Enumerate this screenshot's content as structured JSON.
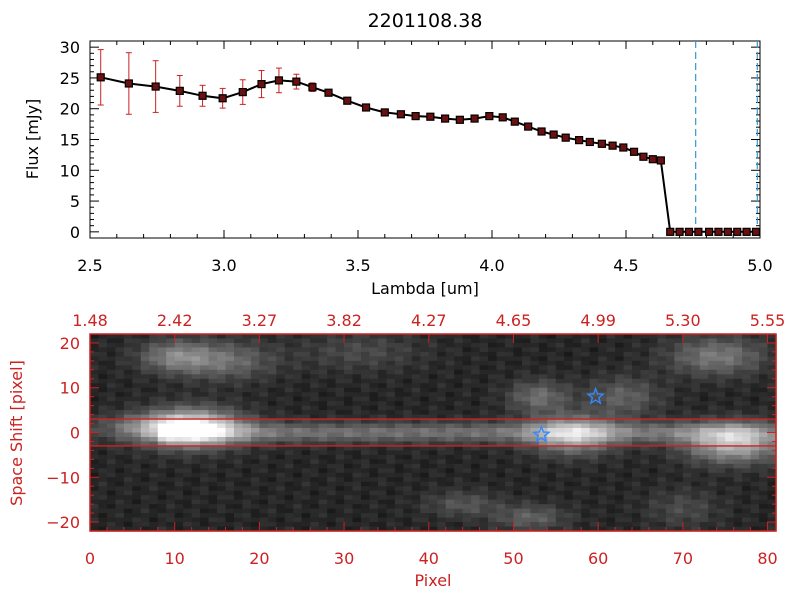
{
  "colors": {
    "black": "#000000",
    "red": "#cc2222",
    "cyan": "#3399cc",
    "star": "#3388ff"
  },
  "chart_data": [
    {
      "type": "line",
      "title": "2201108.38",
      "xlabel": "Lambda [um]",
      "ylabel": "Flux [mJy]",
      "xlim": [
        2.5,
        5.0
      ],
      "ylim": [
        -1,
        31
      ],
      "xticks": [
        {
          "value": 2.5,
          "label": "2.5"
        },
        {
          "value": 3.0,
          "label": "3.0"
        },
        {
          "value": 3.5,
          "label": "3.5"
        },
        {
          "value": 4.0,
          "label": "4.0"
        },
        {
          "value": 4.5,
          "label": "4.5"
        },
        {
          "value": 5.0,
          "label": "5.0"
        }
      ],
      "yticks": [
        {
          "value": 0,
          "label": "0"
        },
        {
          "value": 5,
          "label": "5"
        },
        {
          "value": 10,
          "label": "10"
        },
        {
          "value": 15,
          "label": "15"
        },
        {
          "value": 20,
          "label": "20"
        },
        {
          "value": 25,
          "label": "25"
        },
        {
          "value": 30,
          "label": "30"
        }
      ],
      "series": [
        {
          "x": [
            2.54,
            2.645,
            2.745,
            2.835,
            2.92,
            2.995,
            3.07,
            3.14,
            3.205,
            3.27,
            3.33,
            3.39,
            3.46,
            3.53,
            3.6,
            3.66,
            3.715,
            3.77,
            3.825,
            3.88,
            3.935,
            3.99,
            4.04,
            4.085,
            4.135,
            4.185,
            4.23,
            4.275,
            4.325,
            4.365,
            4.41,
            4.45,
            4.49,
            4.53,
            4.565,
            4.6,
            4.63,
            4.665,
            4.7,
            4.735,
            4.77,
            4.81,
            4.845,
            4.88,
            4.915,
            4.95,
            4.985
          ],
          "y": [
            25.1,
            24.1,
            23.6,
            22.9,
            22.1,
            21.7,
            22.7,
            24.0,
            24.6,
            24.4,
            23.5,
            22.6,
            21.3,
            20.2,
            19.4,
            19.1,
            18.8,
            18.7,
            18.4,
            18.2,
            18.4,
            18.8,
            18.6,
            17.9,
            17.1,
            16.3,
            15.8,
            15.3,
            14.9,
            14.6,
            14.3,
            14.0,
            13.7,
            13.0,
            12.2,
            11.8,
            11.6,
            0,
            0,
            0,
            0,
            0,
            0,
            0,
            0,
            0,
            0
          ],
          "yerr": [
            4.5,
            5.0,
            4.2,
            2.5,
            1.7,
            1.6,
            2.0,
            2.2,
            2.0,
            1.2,
            0.7,
            0.4,
            0.4,
            0.3,
            0.3,
            0.3,
            0.3,
            0.3,
            0.3,
            0.3,
            0.3,
            0.3,
            0.3,
            0.3,
            0.3,
            0.3,
            0.3,
            0.3,
            0.3,
            0.3,
            0.3,
            0.3,
            0.3,
            0.3,
            0.3,
            0.3,
            0.3,
            0.2,
            0.2,
            0.2,
            0.2,
            0.2,
            0.2,
            0.2,
            0.2,
            0.2,
            0.2
          ]
        }
      ],
      "vlines": [
        4.76,
        4.99
      ]
    },
    {
      "type": "heatmap",
      "xlabel": "Pixel",
      "ylabel": "Space Shift [pixel]",
      "xlim": [
        0,
        81
      ],
      "ylim": [
        -22,
        22
      ],
      "xticks": [
        {
          "value": 0,
          "label": "0"
        },
        {
          "value": 10,
          "label": "10"
        },
        {
          "value": 20,
          "label": "20"
        },
        {
          "value": 30,
          "label": "30"
        },
        {
          "value": 40,
          "label": "40"
        },
        {
          "value": 50,
          "label": "50"
        },
        {
          "value": 60,
          "label": "60"
        },
        {
          "value": 70,
          "label": "70"
        },
        {
          "value": 80,
          "label": "80"
        }
      ],
      "top_ticks": [
        {
          "value": 0,
          "label": "1.48"
        },
        {
          "value": 10,
          "label": "2.42"
        },
        {
          "value": 20,
          "label": "3.27"
        },
        {
          "value": 30,
          "label": "3.82"
        },
        {
          "value": 40,
          "label": "4.27"
        },
        {
          "value": 50,
          "label": "4.65"
        },
        {
          "value": 60,
          "label": "4.99"
        },
        {
          "value": 70,
          "label": "5.30"
        },
        {
          "value": 80,
          "label": "5.55"
        }
      ],
      "yticks": [
        {
          "value": -20,
          "label": "−20"
        },
        {
          "value": -10,
          "label": "−10"
        },
        {
          "value": 0,
          "label": "0"
        },
        {
          "value": 10,
          "label": "10"
        },
        {
          "value": 20,
          "label": "20"
        }
      ],
      "hlines": [
        3,
        -3
      ],
      "stars": [
        {
          "x": 53.3,
          "y": -0.5
        },
        {
          "x": 59.7,
          "y": 8.0
        }
      ],
      "sources": [
        {
          "x": 12,
          "y": 1,
          "sx": 4,
          "sy": 3,
          "amp": 0.75
        },
        {
          "x": 8,
          "y": 1,
          "sx": 5,
          "sy": 2,
          "amp": 0.35
        },
        {
          "x": 57,
          "y": -0.5,
          "sx": 3.5,
          "sy": 3,
          "amp": 0.55
        },
        {
          "x": 76,
          "y": -2.5,
          "sx": 4,
          "sy": 3,
          "amp": 0.6
        },
        {
          "x": 10,
          "y": 17,
          "sx": 3,
          "sy": 2.5,
          "amp": 0.35
        },
        {
          "x": 16,
          "y": 16,
          "sx": 4,
          "sy": 3,
          "amp": 0.3
        },
        {
          "x": 53,
          "y": 8,
          "sx": 2.5,
          "sy": 2.5,
          "amp": 0.3
        },
        {
          "x": 63,
          "y": 8,
          "sx": 3,
          "sy": 3,
          "amp": 0.25
        },
        {
          "x": 74,
          "y": 17,
          "sx": 4,
          "sy": 3,
          "amp": 0.35
        },
        {
          "x": 52,
          "y": -19,
          "sx": 3,
          "sy": 2,
          "amp": 0.25
        },
        {
          "x": 44,
          "y": -16,
          "sx": 3,
          "sy": 2,
          "amp": 0.2
        },
        {
          "x": 70,
          "y": -17,
          "sx": 3,
          "sy": 3,
          "amp": 0.15
        },
        {
          "x": 32,
          "y": 18,
          "sx": 5,
          "sy": 3,
          "amp": 0.15
        }
      ]
    }
  ]
}
